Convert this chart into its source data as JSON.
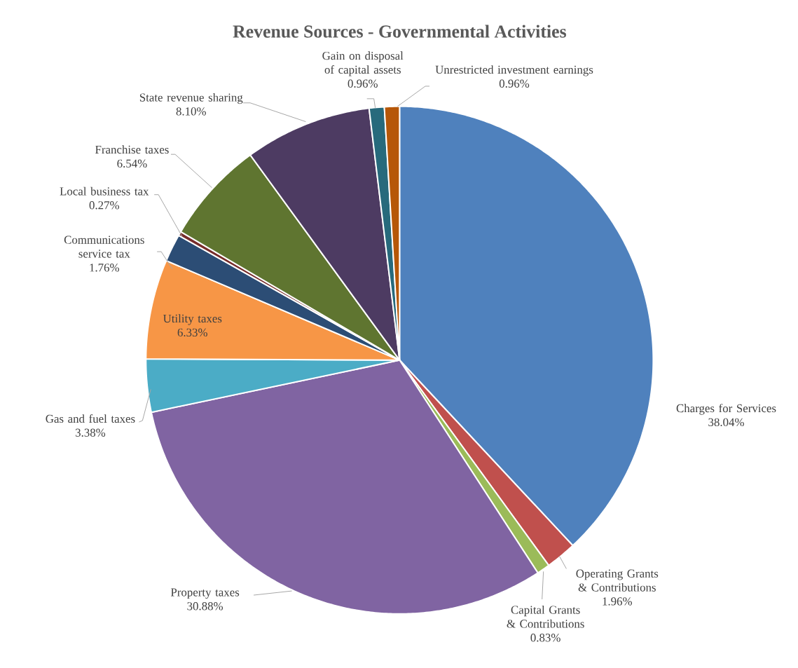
{
  "chart_data": {
    "type": "pie",
    "title": "Revenue Sources - Governmental Activities",
    "categories": [
      "Charges for Services",
      "Operating Grants & Contributions",
      "Capital Grants & Contributions",
      "Property taxes",
      "Gas and fuel taxes",
      "Utility taxes",
      "Communications service tax",
      "Local business tax",
      "Franchise taxes",
      "State revenue sharing",
      "Gain on disposal of capital assets",
      "Unrestricted investment earnings"
    ],
    "values": [
      38.04,
      1.96,
      0.83,
      30.88,
      3.38,
      6.33,
      1.76,
      0.27,
      6.54,
      8.1,
      0.96,
      0.96
    ],
    "value_labels": [
      "38.04%",
      "1.96%",
      "0.83%",
      "30.88%",
      "3.38%",
      "6.33%",
      "1.76%",
      "0.27%",
      "6.54%",
      "8.10%",
      "0.96%",
      "0.96%"
    ],
    "colors": [
      "#4f81bd",
      "#c0504d",
      "#9bbb59",
      "#8064a2",
      "#4bacc6",
      "#f79646",
      "#2c4d75",
      "#772c2a",
      "#5f7530",
      "#4d3b62",
      "#276a7c",
      "#b65708"
    ]
  }
}
